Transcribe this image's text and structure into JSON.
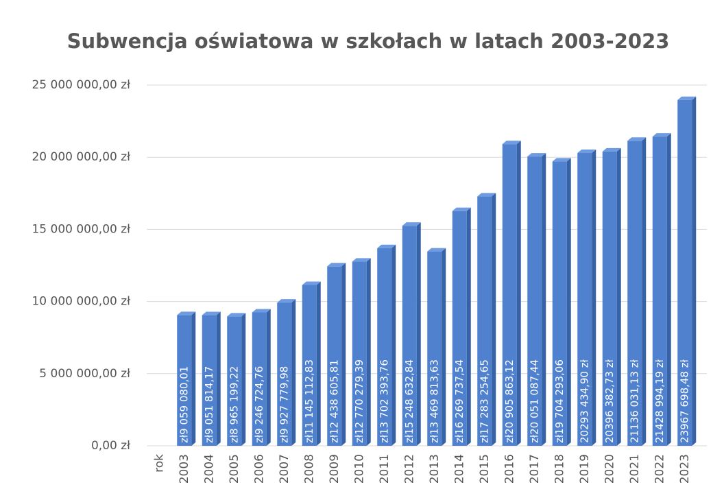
{
  "chart_data": {
    "type": "bar",
    "title": "Subwencja oświatowa w szkołach w latach 2003-2023",
    "categories": [
      "rok",
      "2003",
      "2004",
      "2005",
      "2006",
      "2007",
      "2008",
      "2009",
      "2010",
      "2011",
      "2012",
      "2013",
      "2014",
      "2015",
      "2016",
      "2017",
      "2018",
      "2019",
      "2020",
      "2021",
      "2022",
      "2023"
    ],
    "values": [
      null,
      9059080.01,
      9051814.17,
      8965199.22,
      9246724.76,
      9927779.98,
      11145112.83,
      12438605.81,
      12770279.39,
      13702393.76,
      15248632.84,
      13469813.63,
      16269737.54,
      17283254.65,
      20905863.12,
      20051087.44,
      19704293.06,
      20293434.9,
      20396382.73,
      21136031.13,
      21428994.19,
      23967698.48
    ],
    "value_labels": [
      null,
      "zł9 059 080,01",
      "zł9 051 814,17",
      "zł8 965 199,22",
      "zł9 246 724,76",
      "zł9 927 779,98",
      "zł11 145 112,83",
      "zł12 438 605,81",
      "zł12 770 279,39",
      "zł13 702 393,76",
      "zł15 248 632,84",
      "zł13 469 813,63",
      "zł16 269 737,54",
      "zł17 283 254,65",
      "zł20 905 863,12",
      "zł20 051 087,44",
      "zł19 704 293,06",
      "20293 434,90 zł",
      "20396 382,73 zł",
      "21136 031,13 zł",
      "21428 994,19 zł",
      "23967 698,48 zł"
    ],
    "color": "#4f81cf",
    "ylim": [
      0,
      25000000
    ],
    "yticks": [
      {
        "value": 0,
        "label": "0,00 zł"
      },
      {
        "value": 5000000,
        "label": "5 000 000,00 zł"
      },
      {
        "value": 10000000,
        "label": "10 000 000,00 zł"
      },
      {
        "value": 15000000,
        "label": "15 000 000,00 zł"
      },
      {
        "value": 20000000,
        "label": "20 000 000,00 zł"
      },
      {
        "value": 25000000,
        "label": "25 000 000,00 zł"
      }
    ],
    "grid": true
  }
}
